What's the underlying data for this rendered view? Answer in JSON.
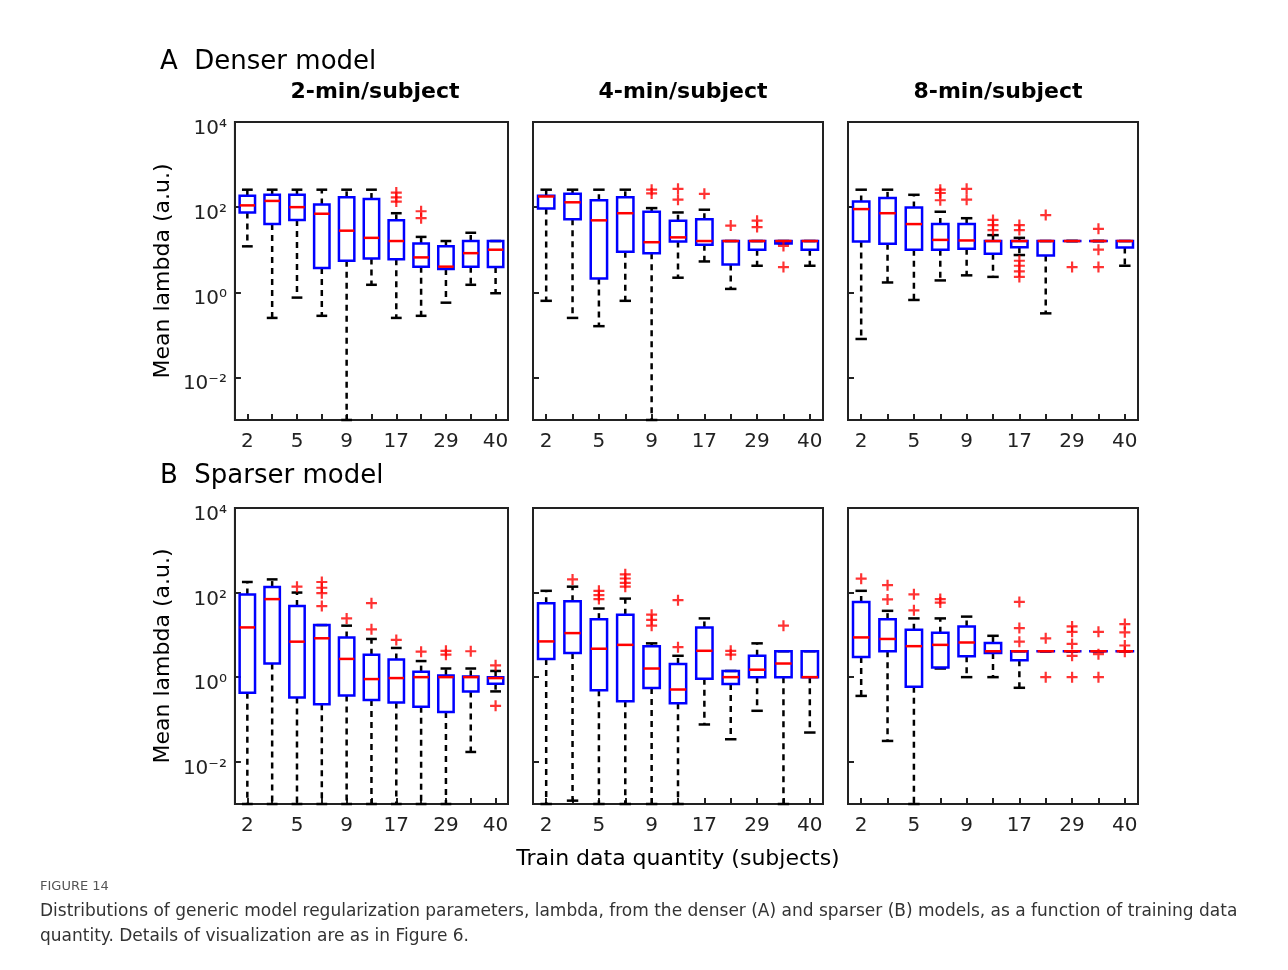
{
  "chart_data": [
    {
      "type": "box",
      "title": "2-min/subject",
      "ylabel": "Mean lambda (a.u.)",
      "log": true,
      "categories": [
        "2",
        null,
        "5",
        null,
        "9",
        null,
        "17",
        null,
        "29",
        null,
        "40"
      ],
      "ylim": [
        0.001,
        10000
      ],
      "yticks": [
        {
          "value": 0.01,
          "label": "10⁻²"
        },
        {
          "value": 1,
          "label": "10⁰"
        },
        {
          "value": 100,
          "label": "10²"
        },
        {
          "value": 10000,
          "label": "10⁴"
        }
      ],
      "annotations": [
        "A  Denser model"
      ],
      "series": [
        {
          "color": "#0000ff",
          "boxes": [
            {
              "low": 12,
              "q1": 75,
              "median": 110,
              "q3": 185,
              "high": 257
            },
            {
              "low": 0.25,
              "q1": 40,
              "median": 140,
              "q3": 195,
              "high": 257
            },
            {
              "low": 0.75,
              "q1": 50,
              "median": 100,
              "q3": 195,
              "high": 257
            },
            {
              "low": 0.28,
              "q1": 3.7,
              "median": 70,
              "q3": 115,
              "high": 257
            },
            {
              "low": 0.001,
              "q1": 5.5,
              "median": 28,
              "q3": 170,
              "high": 257
            },
            {
              "low": 1.5,
              "q1": 6.2,
              "median": 19,
              "q3": 155,
              "high": 257
            },
            {
              "low": 0.25,
              "q1": 6,
              "median": 16,
              "q3": 49,
              "high": 72,
              "outliers": [
                220,
                170,
                135
              ]
            },
            {
              "low": 0.28,
              "q1": 4,
              "median": 6.6,
              "q3": 14,
              "high": 20,
              "outliers": [
                80,
                55
              ]
            },
            {
              "low": 0.57,
              "q1": 3.5,
              "median": 4,
              "q3": 12,
              "high": 16
            },
            {
              "low": 1.5,
              "q1": 4,
              "median": 8.3,
              "q3": 16,
              "high": 25
            },
            {
              "low": 0.95,
              "q1": 3.9,
              "median": 10,
              "q3": 16,
              "high": 16
            }
          ]
        }
      ]
    },
    {
      "type": "box",
      "title": "4-min/subject",
      "log": true,
      "tick_labels": "x",
      "categories": [
        "2",
        null,
        "5",
        null,
        "9",
        null,
        "17",
        null,
        "29",
        null,
        "40"
      ],
      "ylim": [
        0.001,
        10000
      ],
      "yticks": [
        {
          "value": 0.01,
          "label": null
        },
        {
          "value": 1,
          "label": null
        },
        {
          "value": 100,
          "label": null
        },
        {
          "value": 10000,
          "label": null
        }
      ],
      "series": [
        {
          "color": "#0000ff",
          "boxes": [
            {
              "low": 0.63,
              "q1": 93,
              "median": 178,
              "q3": 185,
              "high": 257
            },
            {
              "low": 0.25,
              "q1": 52,
              "median": 130,
              "q3": 205,
              "high": 257
            },
            {
              "low": 0.16,
              "q1": 2.1,
              "median": 49,
              "q3": 145,
              "high": 257
            },
            {
              "low": 0.63,
              "q1": 8.9,
              "median": 72,
              "q3": 170,
              "high": 257
            },
            {
              "low": 0.001,
              "q1": 8.3,
              "median": 15,
              "q3": 78,
              "high": 95,
              "outliers": [
                257,
                210
              ]
            },
            {
              "low": 2.2,
              "q1": 15.5,
              "median": 19.5,
              "q3": 48,
              "high": 75,
              "outliers": [
                270,
                150
              ]
            },
            {
              "low": 5.3,
              "q1": 13,
              "median": 16,
              "q3": 52,
              "high": 87,
              "outliers": [
                205
              ]
            },
            {
              "low": 1.2,
              "q1": 4.5,
              "median": 16,
              "q3": 16,
              "high": 16,
              "outliers": [
                37
              ]
            },
            {
              "low": 4.2,
              "q1": 10,
              "median": 16,
              "q3": 16,
              "high": 16,
              "outliers": [
                48,
                34
              ]
            },
            {
              "low": 14,
              "q1": 14,
              "median": 16,
              "q3": 16,
              "high": 16,
              "outliers": [
                12.3,
                3.9
              ]
            },
            {
              "low": 4.2,
              "q1": 10,
              "median": 16,
              "q3": 16,
              "high": 16
            }
          ]
        }
      ]
    },
    {
      "type": "box",
      "title": "8-min/subject",
      "log": true,
      "tick_labels": "x",
      "categories": [
        "2",
        null,
        "5",
        null,
        "9",
        null,
        "17",
        null,
        "29",
        null,
        "40"
      ],
      "ylim": [
        0.001,
        10000
      ],
      "yticks": [
        {
          "value": 0.01,
          "label": null
        },
        {
          "value": 1,
          "label": null
        },
        {
          "value": 100,
          "label": null
        },
        {
          "value": 10000,
          "label": null
        }
      ],
      "series": [
        {
          "color": "#0000ff",
          "boxes": [
            {
              "low": 0.08,
              "q1": 15.5,
              "median": 90,
              "q3": 135,
              "high": 257
            },
            {
              "low": 1.7,
              "q1": 13.8,
              "median": 72,
              "q3": 165,
              "high": 257
            },
            {
              "low": 0.66,
              "q1": 10,
              "median": 40,
              "q3": 98,
              "high": 195
            },
            {
              "low": 1.9,
              "q1": 10,
              "median": 17,
              "q3": 40,
              "high": 78,
              "outliers": [
                257,
                215,
                145
              ]
            },
            {
              "low": 2.5,
              "q1": 10.5,
              "median": 16.5,
              "q3": 40,
              "high": 55,
              "outliers": [
                270,
                150
              ]
            },
            {
              "low": 2.3,
              "q1": 8,
              "median": 16,
              "q3": 16,
              "high": 22,
              "outliers": [
                50,
                38,
                29
              ]
            },
            {
              "low": 7.5,
              "q1": 11.4,
              "median": 16,
              "q3": 16,
              "high": 19,
              "outliers": [
                38,
                29,
                5.5,
                4.2,
                3.1,
                2.3
              ]
            },
            {
              "low": 0.32,
              "q1": 7.3,
              "median": 16,
              "q3": 16,
              "high": 16,
              "outliers": [
                65
              ]
            },
            {
              "low": 16,
              "q1": 16,
              "median": 16,
              "q3": 16,
              "high": 16,
              "outliers": [
                3.9
              ]
            },
            {
              "low": 16,
              "q1": 16,
              "median": 16,
              "q3": 16,
              "high": 16,
              "outliers": [
                31,
                10,
                3.9
              ]
            },
            {
              "low": 4.2,
              "q1": 11.2,
              "median": 16,
              "q3": 16,
              "high": 16
            }
          ]
        }
      ]
    },
    {
      "type": "box",
      "ylabel": "Mean lambda (a.u.)",
      "log": true,
      "categories": [
        "2",
        null,
        "5",
        null,
        "9",
        null,
        "17",
        null,
        "29",
        null,
        "40"
      ],
      "ylim": [
        0.001,
        10000
      ],
      "yticks": [
        {
          "value": 0.01,
          "label": "10⁻²"
        },
        {
          "value": 1,
          "label": "10⁰"
        },
        {
          "value": 100,
          "label": "10²"
        },
        {
          "value": 10000,
          "label": "10⁴"
        }
      ],
      "annotations": [
        "B  Sparser model"
      ],
      "series": [
        {
          "color": "#0000ff",
          "boxes": [
            {
              "low": 0.001,
              "q1": 0.43,
              "median": 15,
              "q3": 90,
              "high": 178
            },
            {
              "low": 0.001,
              "q1": 2.1,
              "median": 70,
              "q3": 135,
              "high": 205
            },
            {
              "low": 0.001,
              "q1": 0.33,
              "median": 6.9,
              "q3": 48,
              "high": 100,
              "outliers": [
                138
              ]
            },
            {
              "low": 0.001,
              "q1": 0.23,
              "median": 8.3,
              "q3": 17,
              "high": 17,
              "outliers": [
                178,
                130,
                97,
                48
              ]
            },
            {
              "low": 0.001,
              "q1": 0.37,
              "median": 2.7,
              "q3": 8.7,
              "high": 16.5,
              "outliers": [
                24.5
              ]
            },
            {
              "low": 0.001,
              "q1": 0.29,
              "median": 0.9,
              "q3": 3.4,
              "high": 8,
              "outliers": [
                56,
                13.5
              ]
            },
            {
              "low": 0.001,
              "q1": 0.25,
              "median": 0.95,
              "q3": 2.6,
              "high": 4.9,
              "outliers": [
                7.6
              ]
            },
            {
              "low": 0.001,
              "q1": 0.2,
              "median": 1,
              "q3": 1.35,
              "high": 2.4,
              "outliers": [
                4
              ]
            },
            {
              "low": 0.001,
              "q1": 0.15,
              "median": 1,
              "q3": 1.1,
              "high": 1.6,
              "outliers": [
                4.2,
                3.4
              ]
            },
            {
              "low": 0.017,
              "q1": 0.46,
              "median": 1,
              "q3": 1.04,
              "high": 1.6,
              "outliers": [
                4.1
              ]
            },
            {
              "low": 0.46,
              "q1": 0.7,
              "median": 0.95,
              "q3": 1,
              "high": 1.4,
              "outliers": [
                1.9,
                0.21
              ]
            }
          ]
        }
      ]
    },
    {
      "type": "box",
      "xlabel": "Train data quantity (subjects)",
      "log": true,
      "tick_labels": "x",
      "categories": [
        "2",
        null,
        "5",
        null,
        "9",
        null,
        "17",
        null,
        "29",
        null,
        "40"
      ],
      "ylim": [
        0.001,
        10000
      ],
      "yticks": [
        {
          "value": 0.01,
          "label": null
        },
        {
          "value": 1,
          "label": null
        },
        {
          "value": 100,
          "label": null
        },
        {
          "value": 10000,
          "label": null
        }
      ],
      "series": [
        {
          "color": "#0000ff",
          "boxes": [
            {
              "low": 0.001,
              "q1": 2.7,
              "median": 7,
              "q3": 56,
              "high": 110
            },
            {
              "low": 0.0012,
              "q1": 3.7,
              "median": 11,
              "q3": 62,
              "high": 138,
              "outliers": [
                205
              ]
            },
            {
              "low": 0.001,
              "q1": 0.49,
              "median": 4.7,
              "q3": 23.5,
              "high": 42,
              "outliers": [
                110,
                87,
                70
              ]
            },
            {
              "low": 0.001,
              "q1": 0.27,
              "median": 5.8,
              "q3": 30,
              "high": 72,
              "outliers": [
                270,
                215,
                170,
                138
              ]
            },
            {
              "low": 0.001,
              "q1": 0.55,
              "median": 1.6,
              "q3": 5.4,
              "high": 6.3,
              "outliers": [
                30,
                22.5,
                16.5
              ]
            },
            {
              "low": 0.001,
              "q1": 0.24,
              "median": 0.51,
              "q3": 2.05,
              "high": 3.2,
              "outliers": [
                66,
                5.1
              ]
            },
            {
              "low": 0.076,
              "q1": 0.91,
              "median": 4.2,
              "q3": 15,
              "high": 24.5
            },
            {
              "low": 0.034,
              "q1": 0.69,
              "median": 1,
              "q3": 1.4,
              "high": 1.4,
              "outliers": [
                4.2,
                3.4
              ]
            },
            {
              "low": 0.16,
              "q1": 1,
              "median": 1.5,
              "q3": 3.2,
              "high": 6.3
            },
            {
              "low": 0.001,
              "q1": 1,
              "median": 2.1,
              "q3": 4.1,
              "high": 4.1,
              "outliers": [
                16.5
              ]
            },
            {
              "low": 0.049,
              "q1": 1,
              "median": 1,
              "q3": 4.1,
              "high": 4.1
            }
          ]
        }
      ]
    },
    {
      "type": "box",
      "log": true,
      "tick_labels": "x",
      "categories": [
        "2",
        null,
        "5",
        null,
        "9",
        null,
        "17",
        null,
        "29",
        null,
        "40"
      ],
      "ylim": [
        0.001,
        10000
      ],
      "yticks": [
        {
          "value": 0.01,
          "label": null
        },
        {
          "value": 1,
          "label": null
        },
        {
          "value": 100,
          "label": null
        },
        {
          "value": 10000,
          "label": null
        }
      ],
      "annotations": [
        "FIGURE 14",
        "Distributions of generic model regularization parameters, lambda, from the denser (A) and sparser (B) models, as a function of training data quantity. Details of visualization are as in Figure 6."
      ],
      "series": [
        {
          "color": "#0000ff",
          "boxes": [
            {
              "low": 0.36,
              "q1": 3,
              "median": 8.7,
              "q3": 60,
              "high": 110,
              "outliers": [
                213
              ]
            },
            {
              "low": 0.031,
              "q1": 4.1,
              "median": 8,
              "q3": 23.5,
              "high": 37,
              "outliers": [
                150,
                69
              ]
            },
            {
              "low": 0.001,
              "q1": 0.59,
              "median": 5.4,
              "q3": 13.2,
              "high": 24.5,
              "outliers": [
                91,
                38
              ]
            },
            {
              "low": 1.6,
              "q1": 1.7,
              "median": 5.8,
              "q3": 11.2,
              "high": 24.5,
              "outliers": [
                70,
                58
              ]
            },
            {
              "low": 1,
              "q1": 3.1,
              "median": 6.6,
              "q3": 15.8,
              "high": 27
            },
            {
              "low": 1,
              "q1": 3.7,
              "median": 4.1,
              "q3": 6.4,
              "high": 9.5
            },
            {
              "low": 0.56,
              "q1": 2.5,
              "median": 4.1,
              "q3": 4.1,
              "high": 4.1,
              "outliers": [
                60,
                14.5,
                6.9
              ]
            },
            {
              "low": 4.1,
              "q1": 4.1,
              "median": 4.1,
              "q3": 4.1,
              "high": 4.1,
              "outliers": [
                8.3,
                1
              ]
            },
            {
              "low": 4.1,
              "q1": 4.1,
              "median": 4.1,
              "q3": 4.1,
              "high": 4.1,
              "outliers": [
                15.8,
                11.8,
                6.1,
                3.2,
                1
              ]
            },
            {
              "low": 4.1,
              "q1": 4.1,
              "median": 4.1,
              "q3": 4.1,
              "high": 4.1,
              "outliers": [
                11.8,
                3.5,
                1
              ]
            },
            {
              "low": 4.1,
              "q1": 4.1,
              "median": 4.1,
              "q3": 4.1,
              "high": 4.1,
              "outliers": [
                18,
                11.5,
                5.6,
                4
              ]
            }
          ]
        }
      ]
    }
  ]
}
